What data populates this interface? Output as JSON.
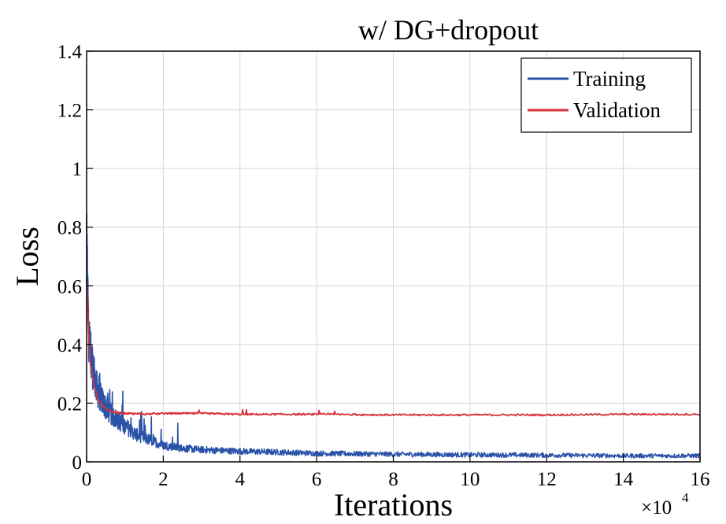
{
  "chart_data": {
    "type": "line",
    "title": "w/ DG+dropout",
    "xlabel": "Iterations",
    "ylabel": "Loss",
    "x_multiplier": "×10",
    "x_multiplier_exp": "4",
    "xlim": [
      0,
      16
    ],
    "ylim": [
      0,
      1.4
    ],
    "xticks": [
      "0",
      "2",
      "4",
      "6",
      "8",
      "10",
      "12",
      "14",
      "16"
    ],
    "yticks": [
      "0",
      "0.2",
      "0.4",
      "0.6",
      "0.8",
      "1",
      "1.2",
      "1.4"
    ],
    "grid": true,
    "legend_position": "top-right",
    "series": [
      {
        "name": "Training",
        "color": "#2a52a8",
        "x": [
          0,
          0.05,
          0.1,
          0.2,
          0.3,
          0.5,
          0.7,
          1.0,
          1.3,
          1.6,
          2.0,
          2.5,
          3.0,
          4.0,
          5.0,
          6.0,
          8.0,
          10.0,
          12.0,
          14.0,
          16.0
        ],
        "values": [
          0.72,
          0.45,
          0.35,
          0.28,
          0.23,
          0.18,
          0.15,
          0.12,
          0.09,
          0.075,
          0.055,
          0.045,
          0.04,
          0.035,
          0.032,
          0.028,
          0.025,
          0.023,
          0.022,
          0.02,
          0.02
        ]
      },
      {
        "name": "Validation",
        "color": "#d6323a",
        "x": [
          0,
          0.05,
          0.1,
          0.2,
          0.3,
          0.5,
          0.7,
          1.0,
          1.5,
          2.0,
          3.0,
          4.0,
          5.0,
          6.0,
          8.0,
          10.0,
          12.0,
          14.0,
          16.0
        ],
        "values": [
          0.62,
          0.45,
          0.33,
          0.26,
          0.21,
          0.18,
          0.17,
          0.165,
          0.163,
          0.165,
          0.165,
          0.162,
          0.162,
          0.162,
          0.16,
          0.16,
          0.16,
          0.162,
          0.162
        ]
      }
    ]
  }
}
